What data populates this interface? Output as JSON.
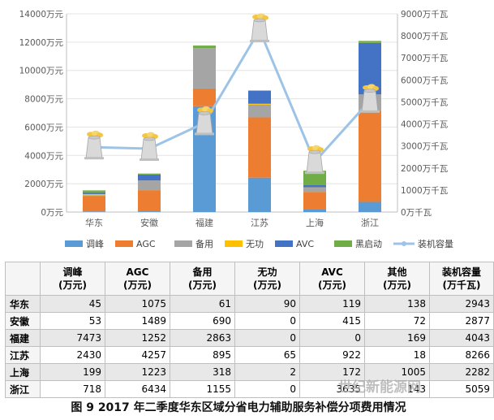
{
  "chart_data": {
    "type": "bar",
    "stacked": true,
    "categories": [
      "华东",
      "安徽",
      "福建",
      "江苏",
      "上海",
      "浙江"
    ],
    "series": [
      {
        "name": "调峰",
        "color": "#5b9bd5",
        "values": [
          45,
          53,
          7473,
          2430,
          199,
          718
        ]
      },
      {
        "name": "AGC",
        "color": "#ed7d31",
        "values": [
          1075,
          1489,
          1252,
          4257,
          1223,
          6434
        ]
      },
      {
        "name": "备用",
        "color": "#a5a5a5",
        "values": [
          61,
          690,
          2863,
          895,
          318,
          1155
        ]
      },
      {
        "name": "无功",
        "color": "#ffc000",
        "values": [
          90,
          0,
          0,
          65,
          2,
          0
        ]
      },
      {
        "name": "AVC",
        "color": "#4472c4",
        "values": [
          119,
          415,
          0,
          922,
          172,
          3635
        ]
      },
      {
        "name": "黑启动",
        "color": "#70ad47",
        "values": [
          138,
          72,
          169,
          18,
          1005,
          143
        ]
      }
    ],
    "line": {
      "name": "装机容量",
      "color": "#9dc3e6",
      "values": [
        2943,
        2877,
        4043,
        8266,
        2282,
        5059
      ]
    },
    "ylim_left": [
      0,
      14000
    ],
    "ylim_right": [
      0,
      9000
    ],
    "y_ticks_left": [
      "0万元",
      "2000万元",
      "4000万元",
      "6000万元",
      "8000万元",
      "10000万元",
      "12000万元",
      "14000万元"
    ],
    "y_ticks_right": [
      "0万千瓦",
      "1000万千瓦",
      "2000万千瓦",
      "3000万千瓦",
      "4000万千瓦",
      "5000万千瓦",
      "6000万千瓦",
      "7000万千瓦",
      "8000万千瓦",
      "9000万千瓦"
    ],
    "legend_position": "bottom"
  },
  "table": {
    "headers": [
      {
        "title": "",
        "unit": ""
      },
      {
        "title": "调峰",
        "unit": "(万元)"
      },
      {
        "title": "AGC",
        "unit": "(万元)"
      },
      {
        "title": "备用",
        "unit": "(万元)"
      },
      {
        "title": "无功",
        "unit": "(万元)"
      },
      {
        "title": "AVC",
        "unit": "(万元)"
      },
      {
        "title": "其他",
        "unit": "(万元)"
      },
      {
        "title": "装机容量",
        "unit": "(万千瓦)"
      }
    ],
    "rows": [
      [
        "华东",
        "45",
        "1075",
        "61",
        "90",
        "119",
        "138",
        "2943"
      ],
      [
        "安徽",
        "53",
        "1489",
        "690",
        "0",
        "415",
        "72",
        "2877"
      ],
      [
        "福建",
        "7473",
        "1252",
        "2863",
        "0",
        "0",
        "169",
        "4043"
      ],
      [
        "江苏",
        "2430",
        "4257",
        "895",
        "65",
        "922",
        "18",
        "8266"
      ],
      [
        "上海",
        "199",
        "1223",
        "318",
        "2",
        "172",
        "1005",
        "2282"
      ],
      [
        "浙江",
        "718",
        "6434",
        "1155",
        "0",
        "3635",
        "143",
        "5059"
      ]
    ]
  },
  "caption": "图 9   2017 年二季度华东区域分省电力辅助服务补偿分项费用情况",
  "watermark": "世纪新能源网"
}
